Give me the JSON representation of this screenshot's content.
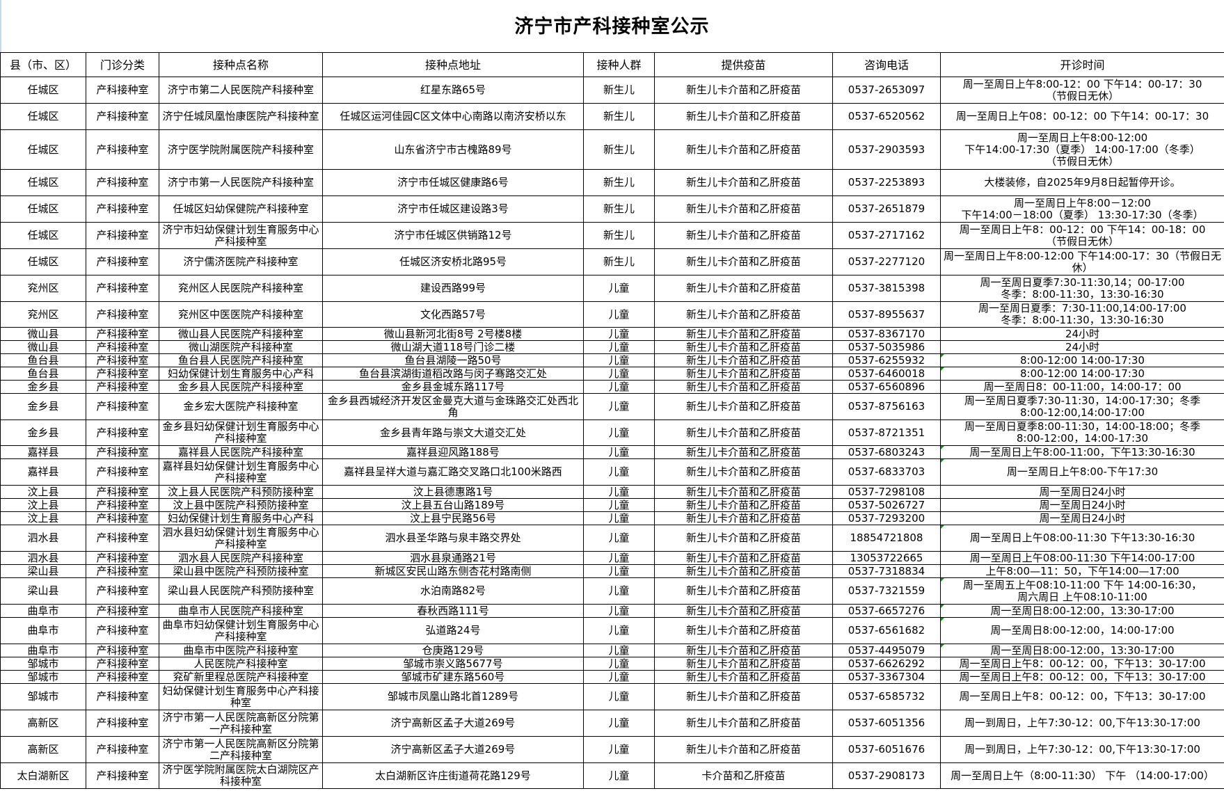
{
  "title": "济宁市产科接种室公示",
  "headers": [
    "县（市、区）",
    "门诊分类",
    "接种点名称",
    "接种点地址",
    "接种人群",
    "提供疫苗",
    "咨询电话",
    "开诊时间"
  ],
  "rows": [
    [
      "任城区",
      "产科接种室",
      "济宁市第二人民医院产科接种室",
      "红星东路65号",
      "新生儿",
      "新生儿卡介苗和乙肝疫苗",
      "0537-2653097",
      "周一至周日上午8:00-12：00  下午14：00-17：30\n（节假日无休）"
    ],
    [
      "任城区",
      "产科接种室",
      "济宁任城凤凰怡康医院产科接种室",
      "任城区运河佳园C区文体中心南路以南济安桥以东",
      "新生儿",
      "新生儿卡介苗和乙肝疫苗",
      "0537-6520562",
      "周一至周日上午08：00-12：00 下午14：00-17：30"
    ],
    [
      "任城区",
      "产科接种室",
      "济宁医学院附属医院产科接种室",
      "山东省济宁市古槐路89号",
      "新生儿",
      "新生儿卡介苗和乙肝疫苗",
      "0537-2903593",
      "周一至周日上午8:00-12:00\n下午14:00-17:30（夏季） 14:00-17:00（冬季）\n（节假日无休）"
    ],
    [
      "任城区",
      "产科接种室",
      "济宁市第一人民医院产科接种室",
      "济宁市任城区健康路6号",
      "新生儿",
      "新生儿卡介苗和乙肝疫苗",
      "0537-2253893",
      "大楼装修，自2025年9月8日起暂停开诊。"
    ],
    [
      "任城区",
      "产科接种室",
      "任城区妇幼保健院产科接种室",
      "济宁市任城区建设路3号",
      "新生儿",
      "新生儿卡介苗和乙肝疫苗",
      "0537-2651879",
      "周一至周日上午8:00－12:00\n下午14:00－18:00（夏季） 13:30-17:30（冬季）"
    ],
    [
      "任城区",
      "产科接种室",
      "济宁市妇幼保健计划生育服务中心产科接种室",
      "济宁市任城区供销路12号",
      "新生儿",
      "新生儿卡介苗和乙肝疫苗",
      "0537-2717162",
      "周一至周日上午8：00-12：00 下午14：00-18：00\n（节假日无休）"
    ],
    [
      "任城区",
      "产科接种室",
      "济宁儒济医院产科接种室",
      "任城区济安桥北路95号",
      "新生儿",
      "新生儿卡介苗和乙肝疫苗",
      "0537-2277120",
      "周一至周日上午8:00-12:00  下午14:00-17：30（节假日无休）"
    ],
    [
      "兖州区",
      "产科接种室",
      "兖州区人民医院产科接种室",
      "建设西路99号",
      "儿童",
      "新生儿卡介苗和乙肝疫苗",
      "0537-3815398",
      "周一至周日夏季7:30-11:30,14；00-17:00\n冬季：8:00-11:30，13:30-16:30"
    ],
    [
      "兖州区",
      "产科接种室",
      "兖州区中医医院产科接种室",
      "文化西路57号",
      "儿童",
      "新生儿卡介苗和乙肝疫苗",
      "0537-8955637",
      "周一至周日夏季：7:30-11:00,14:00-17:00\n冬季：8:00-11:30，13:30-16:30"
    ],
    [
      "微山县",
      "产科接种室",
      "微山县人民医院产科接种室",
      "微山县新河北街8号 2号楼8楼",
      "儿童",
      "新生儿卡介苗和乙肝疫苗",
      "0537-8367170",
      "24小时"
    ],
    [
      "微山县",
      "产科接种室",
      "微山湖医院产科接种室",
      "微山湖大道118号门诊二楼",
      "儿童",
      "新生儿卡介苗和乙肝疫苗",
      "0537-5035986",
      "24小时"
    ],
    [
      "鱼台县",
      "产科接种室",
      "鱼台县人民医院产科接种室",
      "鱼台县湖陵一路50号",
      "儿童",
      "新生儿卡介苗和乙肝疫苗",
      "0537-6255932",
      "8:00-12:00 14:00-17:30"
    ],
    [
      "鱼台县",
      "产科接种室",
      "妇幼保健计划生育服务中心产科",
      "鱼台县滨湖街道稻改路与闵子骞路交汇处",
      "儿童",
      "新生儿卡介苗和乙肝疫苗",
      "0537-6460018",
      "8:00-12:00 14:00-17:30"
    ],
    [
      "金乡县",
      "产科接种室",
      "金乡县人民医院产科接种室",
      "金乡县金城东路117号",
      "儿童",
      "新生儿卡介苗和乙肝疫苗",
      "0537-6560896",
      "周一至周日8：00-11:00，14:00-17：00"
    ],
    [
      "金乡县",
      "产科接种室",
      "金乡宏大医院产科接种室",
      "金乡县西城经济开发区金曼克大道与金珠路交汇处西北角",
      "儿童",
      "新生儿卡介苗和乙肝疫苗",
      "0537-8756163",
      "周一至周日夏季7:30-11:30，14:00-17:30；冬季\n8:00-12:00,14:00-17:00"
    ],
    [
      "金乡县",
      "产科接种室",
      "金乡县妇幼保健计划生育服务中心产科接种室",
      "金乡县青年路与崇文大道交汇处",
      "儿童",
      "新生儿卡介苗和乙肝疫苗",
      "0537-8721351",
      "周一至周日夏季8:00-11:30，14:00-18:00；冬季\n8:00-12:00，14:00-17:30"
    ],
    [
      "嘉祥县",
      "产科接种室",
      "嘉祥县人民医院产科接种室",
      "嘉祥县迎风路188号",
      "儿童",
      "新生儿卡介苗和乙肝疫苗",
      "0537-6803243",
      "周一至周日上午8:00-11:00，下午13:30-16:30"
    ],
    [
      "嘉祥县",
      "产科接种室",
      "嘉祥县妇幼保健计划生育服务中心产科接种室",
      "嘉祥县呈祥大道与嘉汇路交叉路口北100米路西",
      "儿童",
      "新生儿卡介苗和乙肝疫苗",
      "0537-6833703",
      "周一至周日上午8:00-下午17:30"
    ],
    [
      "汶上县",
      "产科接种室",
      "汶上县人民医院产科预防接种室",
      "汶上县德惠路1号",
      "儿童",
      "新生儿卡介苗和乙肝疫苗",
      "0537-7298108",
      "周一至周日24小时"
    ],
    [
      "汶上县",
      "产科接种室",
      "汶上县中医院产科预防接种室",
      "汶上县五台山路189号",
      "儿童",
      "新生儿卡介苗和乙肝疫苗",
      "0537-5026727",
      "周一至周日24小时"
    ],
    [
      "汶上县",
      "产科接种室",
      "妇幼保健计划生育服务中心产科",
      "汶上县宁民路56号",
      "儿童",
      "新生儿卡介苗和乙肝疫苗",
      "0537-7293200",
      "周一至周日24小时"
    ],
    [
      "泗水县",
      "产科接种室",
      "泗水县妇幼保健计划生育服务中心产科接种室",
      "泗水县圣华路与泉丰路交界处",
      "儿童",
      "新生儿卡介苗和乙肝疫苗",
      "18854721808",
      "周一至周日上午08:00-11:30       下午13:30-16:30"
    ],
    [
      "泗水县",
      "产科接种室",
      "泗水县人民医院产科接种室",
      "泗水县泉通路21号",
      "儿童",
      "新生儿卡介苗和乙肝疫苗",
      "13053722665",
      "周一至周日上午08:00-11:30       下午14:00-17:00"
    ],
    [
      "梁山县",
      "产科接种室",
      "梁山县中医院产科预防接种室",
      "新城区安民山路东侧杏花村路南侧",
      "儿童",
      "新生儿卡介苗和乙肝疫苗",
      "0537-7318834",
      "上午8:00—11：50，下午14:00—17:00"
    ],
    [
      "梁山县",
      "产科接种室",
      "梁山县人民医院产科预防接种室",
      "水泊南路82号",
      "儿童",
      "新生儿卡介苗和乙肝疫苗",
      "0537-7321559",
      "周一至周五上午08:10-11:00 下午 14:00-16:30，\n周六周日 上午08:10-11:00"
    ],
    [
      "曲阜市",
      "产科接种室",
      "曲阜市人民医院产科接种室",
      "春秋西路111号",
      "儿童",
      "新生儿卡介苗和乙肝疫苗",
      "0537-6657276",
      "周一至周日8:00-12:00，13:30-17:00"
    ],
    [
      "曲阜市",
      "产科接种室",
      "曲阜市妇幼保健计划生育服务中心产科接种室",
      "弘道路24号",
      "儿童",
      "新生儿卡介苗和乙肝疫苗",
      "0537-6561682",
      "周一至周日8:00-12:00，14:00-17:00"
    ],
    [
      "曲阜市",
      "产科接种室",
      "曲阜市中医院产科接种室",
      "仓庚路129号",
      "儿童",
      "新生儿卡介苗和乙肝疫苗",
      "0537-4495079",
      "周一至周日8:00-12:00，13:30-17:00"
    ],
    [
      "邹城市",
      "产科接种室",
      "人民医院产科接种室",
      "邹城市崇义路5677号",
      "儿童",
      "新生儿卡介苗和乙肝疫苗",
      "0537-6626292",
      "周一至周日上午8：00-12：00，下午13：30-17:00"
    ],
    [
      "邹城市",
      "产科接种室",
      "兖矿新里程总医院产科接种室",
      "邹城市矿建东路560号",
      "儿童",
      "新生儿卡介苗和乙肝疫苗",
      "0537-3367304",
      "周一至周日上午8：00-12：00，下午13：30-17:00"
    ],
    [
      "邹城市",
      "产科接种室",
      "妇幼保健计划生育服务中心产科接种室",
      "邹城市凤凰山路北首1289号",
      "儿童",
      "新生儿卡介苗和乙肝疫苗",
      "0537-6585732",
      "周一至周日上午8：00-12：00，下午13：30-17:00"
    ],
    [
      "高新区",
      "产科接种室",
      "济宁市第一人民医院高新区分院第一产科接种室",
      "济宁高新区孟子大道269号",
      "儿童",
      "新生儿卡介苗和乙肝疫苗",
      "0537-6051356",
      "周一到周日，上午7:30-12：00,下午13:30-17:00"
    ],
    [
      "高新区",
      "产科接种室",
      "济宁市第一人民医院高新区分院第二产科接种室",
      "济宁高新区孟子大道269号",
      "儿童",
      "新生儿卡介苗和乙肝疫苗",
      "0537-6051676",
      "周一到周日，上午7:30-12：00,下午13:30-17:00"
    ],
    [
      "太白湖新区",
      "产科接种室",
      "济宁医学院附属医院太白湖院区产科接种室",
      "太白湖新区许庄街道荷花路129号",
      "儿童",
      "卡介苗和乙肝疫苗",
      "0537-2908173",
      "周一至周日上午（8:00-11:30） 下午  （14:00-17:00）"
    ]
  ]
}
